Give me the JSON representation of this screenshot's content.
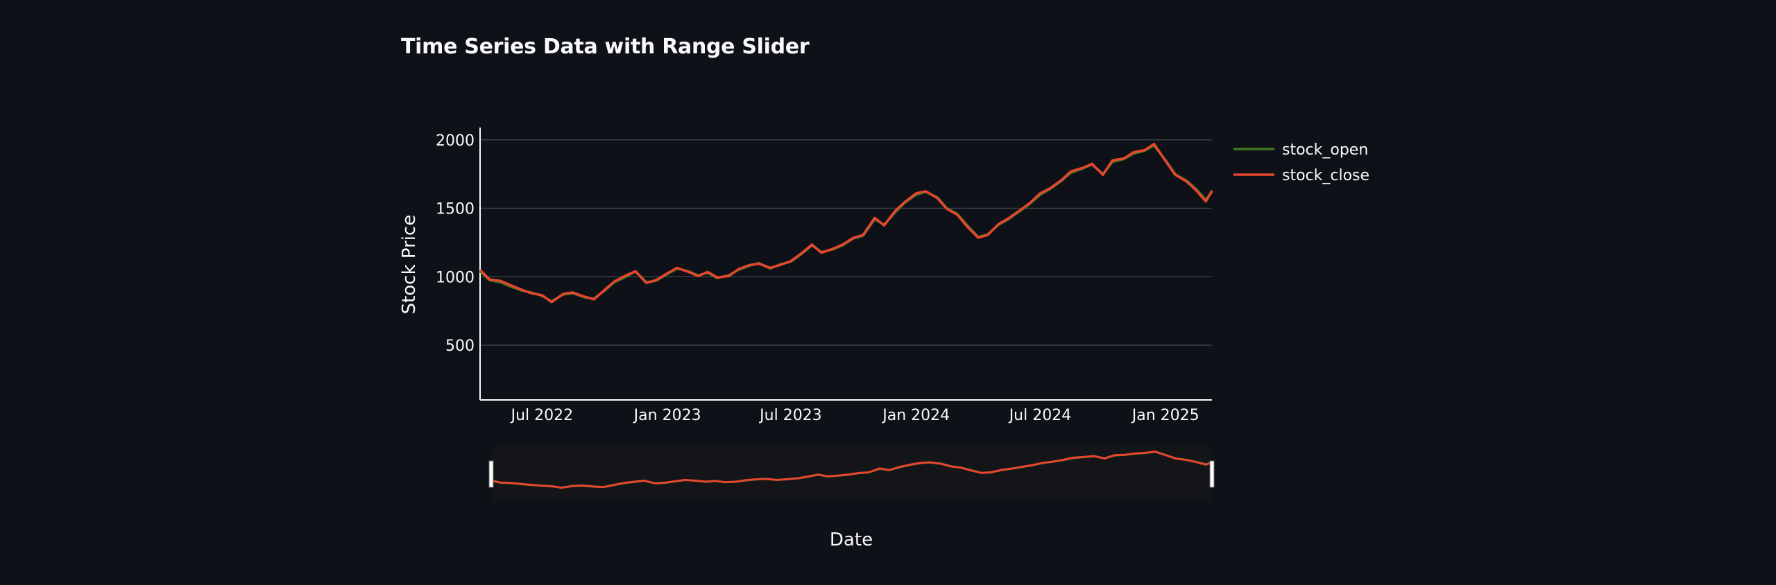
{
  "title": "Time Series Data with Range Slider",
  "colors": {
    "background": "#0e1117",
    "grid": "#3a3f47",
    "axis": "#fafafa",
    "stock_open": "#3d7a22",
    "stock_close": "#e8452e",
    "slider_mask": "#000000",
    "slider_bg": "#131519"
  },
  "chart_data": {
    "type": "line",
    "title": "Time Series Data with Range Slider",
    "xlabel": "Date",
    "ylabel": "Stock Price",
    "ylim": [
      100,
      2080
    ],
    "xlim": [
      "2022-04-01",
      "2025-03-10"
    ],
    "yticks": [
      500,
      1000,
      1500,
      2000
    ],
    "xticks": [
      {
        "date": "2022-07-01",
        "label": "Jul 2022"
      },
      {
        "date": "2023-01-01",
        "label": "Jan 2023"
      },
      {
        "date": "2023-07-01",
        "label": "Jul 2023"
      },
      {
        "date": "2024-01-01",
        "label": "Jan 2024"
      },
      {
        "date": "2024-07-01",
        "label": "Jul 2024"
      },
      {
        "date": "2025-01-01",
        "label": "Jan 2025"
      }
    ],
    "grid": true,
    "legend_position": "top-right",
    "series": [
      {
        "name": "stock_open",
        "x": [
          "2022-04-01",
          "2022-04-15",
          "2022-05-01",
          "2022-05-15",
          "2022-06-01",
          "2022-06-15",
          "2022-07-01",
          "2022-07-15",
          "2022-08-01",
          "2022-08-15",
          "2022-09-01",
          "2022-09-15",
          "2022-10-01",
          "2022-10-15",
          "2022-11-01",
          "2022-11-15",
          "2022-12-01",
          "2022-12-15",
          "2023-01-01",
          "2023-01-15",
          "2023-02-01",
          "2023-02-15",
          "2023-03-01",
          "2023-03-15",
          "2023-04-01",
          "2023-04-15",
          "2023-05-01",
          "2023-05-15",
          "2023-06-01",
          "2023-06-15",
          "2023-07-01",
          "2023-07-15",
          "2023-08-01",
          "2023-08-15",
          "2023-09-01",
          "2023-09-15",
          "2023-10-01",
          "2023-10-15",
          "2023-11-01",
          "2023-11-15",
          "2023-12-01",
          "2023-12-15",
          "2024-01-01",
          "2024-01-15",
          "2024-02-01",
          "2024-02-15",
          "2024-03-01",
          "2024-03-15",
          "2024-04-01",
          "2024-04-15",
          "2024-05-01",
          "2024-05-15",
          "2024-06-01",
          "2024-06-15",
          "2024-07-01",
          "2024-07-15",
          "2024-08-01",
          "2024-08-15",
          "2024-09-01",
          "2024-09-15",
          "2024-10-01",
          "2024-10-15",
          "2024-11-01",
          "2024-11-15",
          "2024-12-01",
          "2024-12-15",
          "2025-01-01",
          "2025-01-15",
          "2025-02-01",
          "2025-02-15",
          "2025-03-01",
          "2025-03-10"
        ],
        "y": [
          1040,
          975,
          960,
          930,
          900,
          885,
          860,
          820,
          870,
          880,
          850,
          840,
          900,
          960,
          1000,
          1040,
          960,
          970,
          1020,
          1060,
          1040,
          1010,
          1030,
          990,
          1010,
          1050,
          1080,
          1100,
          1060,
          1090,
          1110,
          1160,
          1230,
          1180,
          1200,
          1230,
          1280,
          1300,
          1420,
          1380,
          1470,
          1540,
          1600,
          1620,
          1580,
          1500,
          1460,
          1380,
          1290,
          1310,
          1380,
          1420,
          1480,
          1530,
          1600,
          1640,
          1700,
          1760,
          1790,
          1820,
          1750,
          1840,
          1860,
          1900,
          1920,
          1960,
          1850,
          1750,
          1700,
          1640,
          1560,
          1620
        ]
      },
      {
        "name": "stock_close",
        "x": [
          "2022-04-01",
          "2022-04-15",
          "2022-05-01",
          "2022-05-15",
          "2022-06-01",
          "2022-06-15",
          "2022-07-01",
          "2022-07-15",
          "2022-08-01",
          "2022-08-15",
          "2022-09-01",
          "2022-09-15",
          "2022-10-01",
          "2022-10-15",
          "2022-11-01",
          "2022-11-15",
          "2022-12-01",
          "2022-12-15",
          "2023-01-01",
          "2023-01-15",
          "2023-02-01",
          "2023-02-15",
          "2023-03-01",
          "2023-03-15",
          "2023-04-01",
          "2023-04-15",
          "2023-05-01",
          "2023-05-15",
          "2023-06-01",
          "2023-06-15",
          "2023-07-01",
          "2023-07-15",
          "2023-08-01",
          "2023-08-15",
          "2023-09-01",
          "2023-09-15",
          "2023-10-01",
          "2023-10-15",
          "2023-11-01",
          "2023-11-15",
          "2023-12-01",
          "2023-12-15",
          "2024-01-01",
          "2024-01-15",
          "2024-02-01",
          "2024-02-15",
          "2024-03-01",
          "2024-03-15",
          "2024-04-01",
          "2024-04-15",
          "2024-05-01",
          "2024-05-15",
          "2024-06-01",
          "2024-06-15",
          "2024-07-01",
          "2024-07-15",
          "2024-08-01",
          "2024-08-15",
          "2024-09-01",
          "2024-09-15",
          "2024-10-01",
          "2024-10-15",
          "2024-11-01",
          "2024-11-15",
          "2024-12-01",
          "2024-12-15",
          "2025-01-01",
          "2025-01-15",
          "2025-02-01",
          "2025-02-15",
          "2025-03-01",
          "2025-03-10"
        ],
        "y": [
          1050,
          980,
          970,
          940,
          905,
          880,
          865,
          815,
          875,
          885,
          855,
          835,
          905,
          965,
          1010,
          1040,
          955,
          975,
          1025,
          1065,
          1035,
          1005,
          1035,
          995,
          1005,
          1055,
          1085,
          1095,
          1065,
          1085,
          1115,
          1165,
          1235,
          1175,
          1205,
          1235,
          1285,
          1305,
          1430,
          1375,
          1480,
          1545,
          1610,
          1625,
          1575,
          1495,
          1455,
          1370,
          1285,
          1305,
          1385,
          1425,
          1485,
          1535,
          1610,
          1645,
          1705,
          1770,
          1795,
          1825,
          1745,
          1850,
          1865,
          1910,
          1925,
          1970,
          1845,
          1745,
          1695,
          1630,
          1550,
          1630
        ]
      }
    ],
    "range_slider": {
      "selected_start": "2022-04-01",
      "selected_end": "2025-03-10",
      "full_start": "2022-04-01",
      "full_end": "2025-03-10"
    }
  }
}
